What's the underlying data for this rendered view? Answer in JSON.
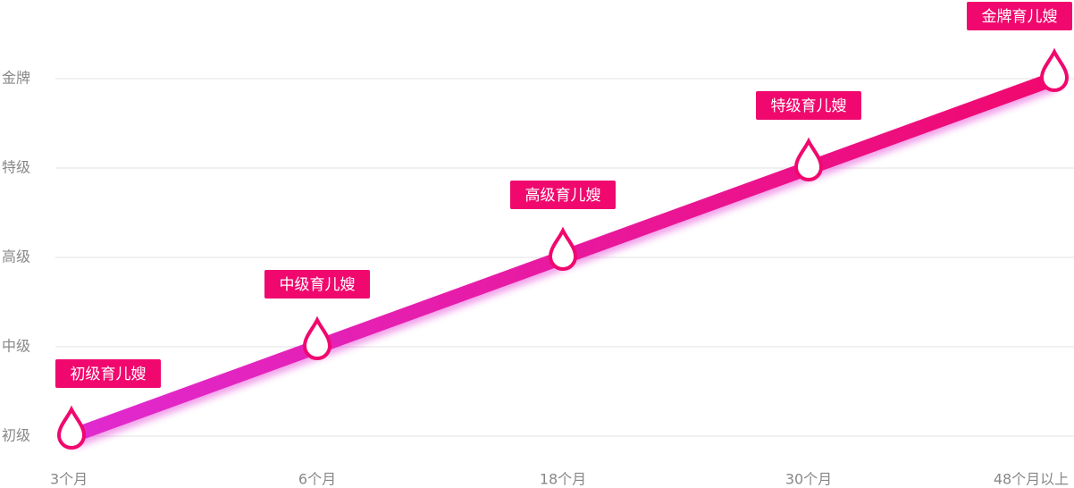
{
  "chart_data": {
    "type": "line",
    "categories": [
      "3个月",
      "6个月",
      "18个月",
      "30个月",
      "48个月以上"
    ],
    "y_categories": [
      "初级",
      "中级",
      "高级",
      "特级",
      "金牌"
    ],
    "values": [
      "初级",
      "中级",
      "高级",
      "特级",
      "金牌"
    ],
    "value_labels": [
      "初级育儿嫂",
      "中级育儿嫂",
      "高级育儿嫂",
      "特级育儿嫂",
      "金牌育儿嫂"
    ],
    "color": "#f0086e",
    "gradient_start": "#e02ad0",
    "grid": true
  }
}
